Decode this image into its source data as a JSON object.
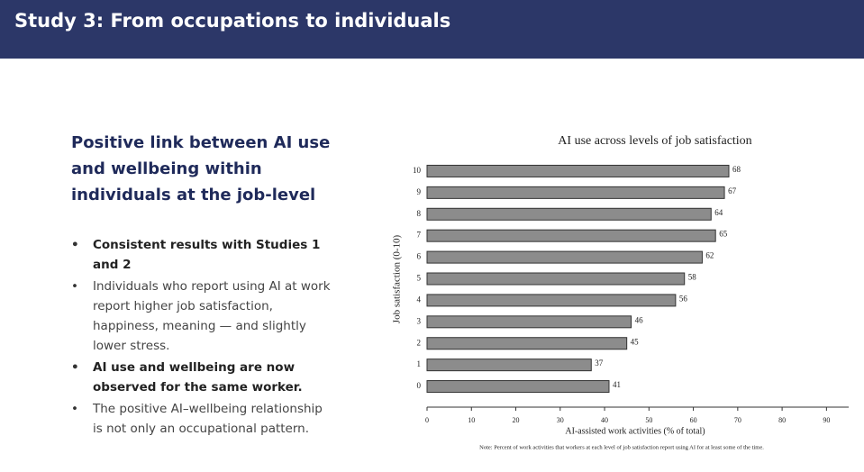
{
  "header": {
    "title": "Study 3: From occupations to individuals"
  },
  "heading": "Positive link between AI use and wellbeing within individuals at the job-level",
  "bullets": [
    {
      "text": "Consistent results with Studies 1 and 2",
      "bold": true
    },
    {
      "text": "Individuals who report using AI at work report higher job satisfaction, happiness, meaning — and slightly lower stress.",
      "bold": false
    },
    {
      "text": "AI use and wellbeing are now observed for the same worker.",
      "bold": true
    },
    {
      "text": "The positive AI–wellbeing relationship is not only an occupational pattern.",
      "bold": false
    }
  ],
  "chart_data": {
    "type": "bar",
    "orientation": "horizontal",
    "title": "AI use across levels of job satisfaction",
    "x_label": "AI-assisted work activities (% of total)",
    "y_label": "Job satisfaction (0-10)",
    "note": "Note: Percent of work activities that workers at each level of job satisfaction report using AI for at least some of the time.",
    "categories": [
      "10",
      "9",
      "8",
      "7",
      "6",
      "5",
      "4",
      "3",
      "2",
      "1",
      "0"
    ],
    "values": [
      68,
      67,
      64,
      65,
      62,
      58,
      56,
      46,
      45,
      37,
      41
    ],
    "color": "#8c8c8c",
    "xlim": [
      0,
      95
    ],
    "xticks": [
      0,
      10,
      20,
      30,
      40,
      50,
      60,
      70,
      80,
      90
    ],
    "grid": false
  }
}
